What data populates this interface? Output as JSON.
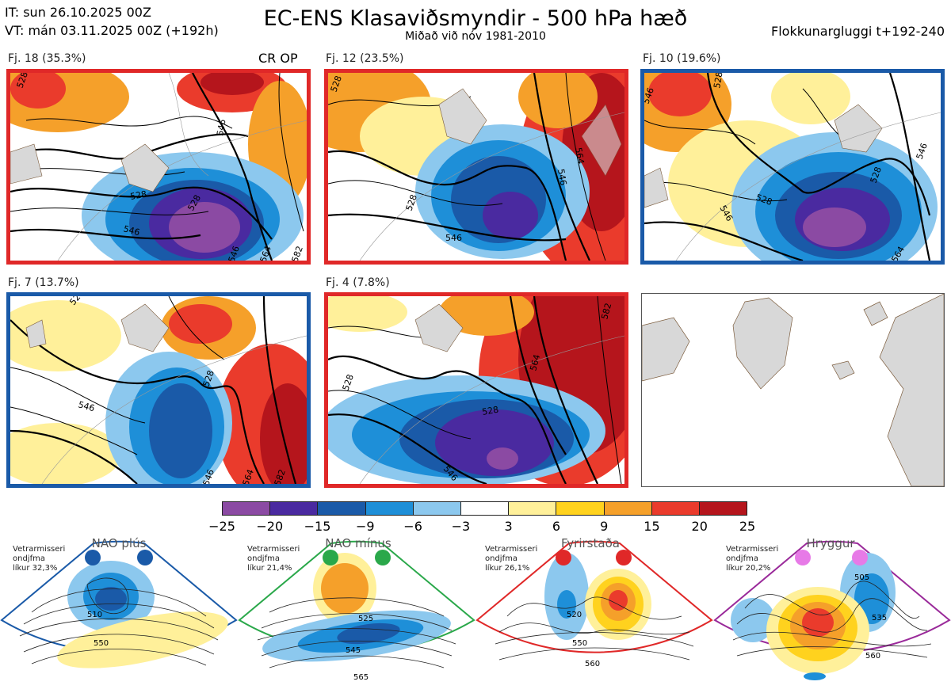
{
  "header": {
    "it_line": "IT: sun 26.10.2025 00Z",
    "vt_line": "VT: mán 03.11.2025 00Z  (+192h)",
    "title": "EC-ENS Klasaviðsmyndir - 500 hPa hæð",
    "subtitle": "Miðað við nóv 1981-2010",
    "window": "Flokkunargluggi t+192-240"
  },
  "panels": [
    {
      "label": "Fj. 18 (35.3%)",
      "extra": "CR OP",
      "frame": "red",
      "contours": [
        "528",
        "546",
        "528",
        "546",
        "528",
        "546",
        "564",
        "582"
      ]
    },
    {
      "label": "Fj. 12 (23.5%)",
      "extra": "",
      "frame": "red",
      "contours": [
        "528",
        "528",
        "546",
        "564",
        "546"
      ]
    },
    {
      "label": "Fj. 10 (19.6%)",
      "extra": "",
      "frame": "blue",
      "contours": [
        "546",
        "528",
        "528",
        "546",
        "528",
        "564",
        "546"
      ]
    },
    {
      "label": "Fj. 7 (13.7%)",
      "extra": "",
      "frame": "blue",
      "contours": [
        "528",
        "546",
        "528",
        "546",
        "564",
        "582"
      ]
    },
    {
      "label": "Fj. 4 (7.8%)",
      "extra": "",
      "frame": "red",
      "contours": [
        "528",
        "528",
        "546",
        "564",
        "582"
      ]
    }
  ],
  "colorbar": {
    "ticks": [
      "−25",
      "−20",
      "−15",
      "−9",
      "−6",
      "−3",
      "3",
      "6",
      "9",
      "15",
      "20",
      "25"
    ],
    "colors": [
      "#8b4aa3",
      "#4a2aa0",
      "#1a5aa8",
      "#1e8fd8",
      "#8cc8ee",
      "#ffffff",
      "#fff09a",
      "#ffd21e",
      "#f5a02a",
      "#ea3b2c",
      "#b5151c"
    ]
  },
  "regimes": [
    {
      "title": "NAO plús",
      "meta": [
        "Vetrarmisseri",
        "ondjfma",
        "líkur 32,3%"
      ],
      "color": "#1a5aa8",
      "labels": [
        "510",
        "550"
      ]
    },
    {
      "title": "NAO mínus",
      "meta": [
        "Vetrarmisseri",
        "ondjfma",
        "líkur 21,4%"
      ],
      "color": "#2aa84a",
      "labels": [
        "525",
        "545",
        "565"
      ]
    },
    {
      "title": "Fyrirstaða",
      "meta": [
        "Vetrarmisseri",
        "ondjfma",
        "líkur 26,1%"
      ],
      "color": "#e02828",
      "labels": [
        "520",
        "550",
        "560"
      ]
    },
    {
      "title": "Hryggur",
      "meta": [
        "Vetrarmisseri",
        "ondjfma",
        "líkur 20,2%"
      ],
      "color": "#9a2a9a",
      "labels": [
        "505",
        "535",
        "560"
      ]
    }
  ]
}
